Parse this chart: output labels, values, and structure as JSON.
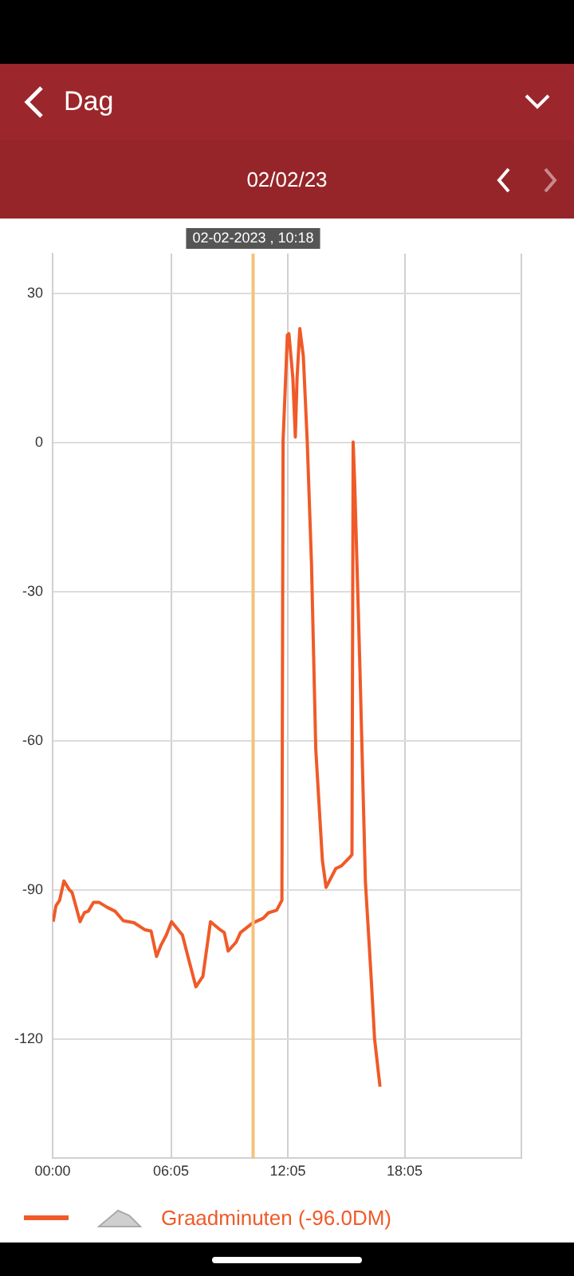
{
  "chart_data": {
    "type": "line",
    "title": "Dag",
    "subtitle": "02/02/23",
    "x": [
      0.03,
      0.17,
      0.36,
      0.58,
      0.86,
      1.0,
      1.19,
      1.41,
      1.63,
      1.83,
      2.1,
      2.38,
      2.8,
      3.21,
      3.63,
      4.18,
      4.73,
      5.06,
      5.34,
      5.56,
      5.84,
      6.11,
      6.67,
      6.95,
      7.36,
      7.72,
      8.11,
      8.6,
      8.82,
      9.02,
      9.43,
      9.65,
      10.26,
      10.82,
      11.09,
      11.51,
      11.78,
      11.84,
      12.06,
      12.14,
      12.34,
      12.47,
      12.56,
      12.7,
      12.88,
      13.08,
      13.3,
      13.52,
      13.86,
      14.05,
      14.55,
      14.83,
      15.3,
      15.38,
      15.44,
      15.52,
      15.79,
      16.07,
      16.35,
      16.54,
      16.82
    ],
    "series": [
      {
        "name": "Graadminuten (-96.0DM)",
        "color": "#f05a28",
        "values": [
          -96.4,
          -93.2,
          -92.1,
          -88.2,
          -90,
          -90.5,
          -93.2,
          -96.4,
          -94.6,
          -94.3,
          -92.5,
          -92.5,
          -93.5,
          -94.3,
          -96.2,
          -96.6,
          -98,
          -98.3,
          -103.4,
          -101.2,
          -99.1,
          -96.4,
          -99.1,
          -103.4,
          -109.5,
          -107.4,
          -96.4,
          -98,
          -98.6,
          -102.3,
          -100.5,
          -98.6,
          -96.7,
          -95.7,
          -94.6,
          -94.1,
          -92.1,
          0.3,
          21.6,
          21.9,
          13.1,
          1.1,
          13.1,
          22.9,
          17.4,
          0.3,
          -24.3,
          -61.7,
          -84.1,
          -89.5,
          -85.7,
          -85.2,
          -83.3,
          -82.9,
          0.1,
          -8.3,
          -45.7,
          -88.4,
          -106.6,
          -119.9,
          -129.6
        ]
      }
    ],
    "xlim": [
      0,
      24.083
    ],
    "xticks": [
      {
        "value": 0,
        "label": "00:00"
      },
      {
        "value": 6.083,
        "label": "06:05"
      },
      {
        "value": 12.083,
        "label": "12:05"
      },
      {
        "value": 18.083,
        "label": "18:05"
      },
      {
        "value": 24.083,
        "label": null
      }
    ],
    "ylim": [
      -144,
      38
    ],
    "yticks": [
      -120,
      -90,
      -60,
      -30,
      0,
      30
    ],
    "ref_lines": [
      {
        "axis": "x",
        "value": 10.3,
        "label": "02-02-2023 , 10:18",
        "color": "#f5c27a"
      }
    ],
    "grid": true,
    "legend": "bottom",
    "marker": "none",
    "line_style": "solid"
  }
}
